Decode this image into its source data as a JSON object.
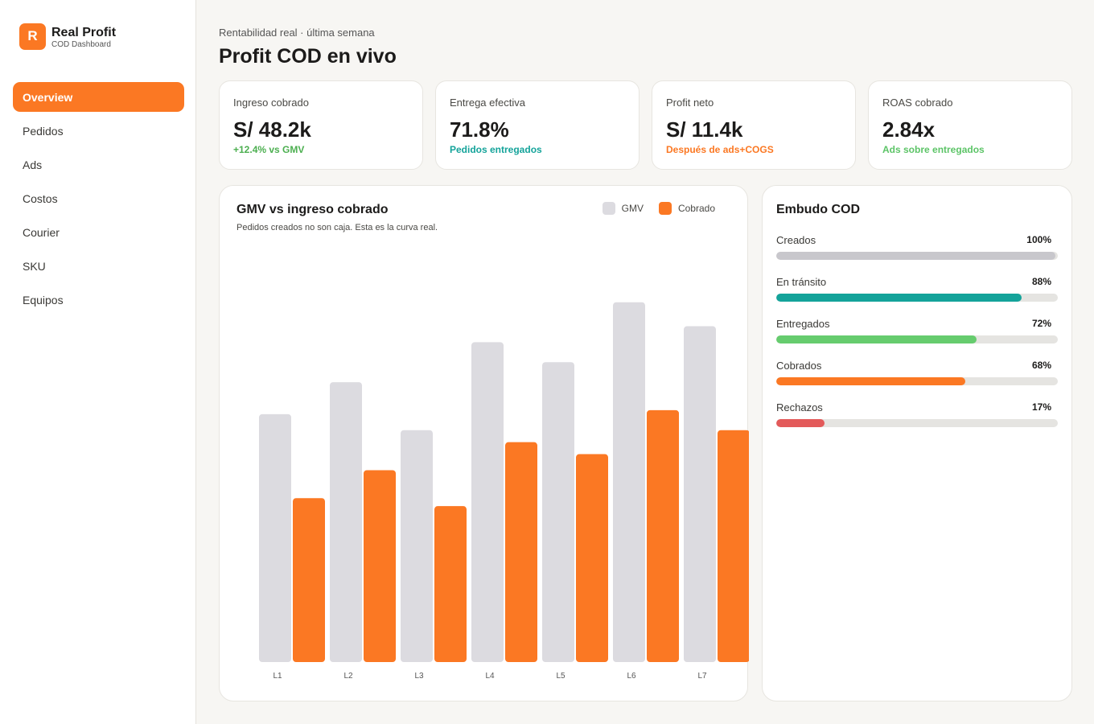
{
  "brand": {
    "logo_letter": "R",
    "name": "Real Profit",
    "subtitle": "COD Dashboard"
  },
  "nav": [
    {
      "label": "Overview",
      "active": true
    },
    {
      "label": "Pedidos"
    },
    {
      "label": "Ads"
    },
    {
      "label": "Costos"
    },
    {
      "label": "Courier"
    },
    {
      "label": "SKU"
    },
    {
      "label": "Equipos"
    }
  ],
  "header": {
    "eyebrow": "Rentabilidad real · última semana",
    "title": "Profit COD en vivo"
  },
  "kpis": [
    {
      "label": "Ingreso cobrado",
      "value": "S/ 48.2k",
      "delta": "+12.4% vs GMV",
      "color": "#4caf50"
    },
    {
      "label": "Entrega efectiva",
      "value": "71.8%",
      "delta": "Pedidos entregados",
      "color": "#14a39a"
    },
    {
      "label": "Profit neto",
      "value": "S/ 11.4k",
      "delta": "Después de ads+COGS",
      "color": "#fb7823"
    },
    {
      "label": "ROAS cobrado",
      "value": "2.84x",
      "delta": "Ads sobre entregados",
      "color": "#5cc467"
    }
  ],
  "chart": {
    "title": "GMV vs ingreso cobrado",
    "subtitle": "Pedidos creados no son caja. Esta es la curva real.",
    "legend": [
      {
        "label": "GMV",
        "color": "#dcdbe0"
      },
      {
        "label": "Cobrado",
        "color": "#fb7823"
      }
    ]
  },
  "chart_data": {
    "type": "bar",
    "categories": [
      "L1",
      "L2",
      "L3",
      "L4",
      "L5",
      "L6",
      "L7"
    ],
    "series": [
      {
        "name": "GMV",
        "values": [
          62,
          70,
          58,
          80,
          75,
          90,
          84
        ]
      },
      {
        "name": "Cobrado",
        "values": [
          41,
          48,
          39,
          55,
          52,
          63,
          58
        ]
      }
    ],
    "ylim": [
      0,
      100
    ],
    "grid": false,
    "legend_position": "top-right",
    "colors": [
      "#dcdbe0",
      "#fb7823"
    ]
  },
  "funnel": {
    "title": "Embudo COD",
    "stages": [
      {
        "label": "Creados",
        "value": "100%",
        "fraction": 0.99,
        "color": "#c8c7cc"
      },
      {
        "label": "En tránsito",
        "value": "88%",
        "fraction": 0.87,
        "color": "#14a39a"
      },
      {
        "label": "Entregados",
        "value": "72%",
        "fraction": 0.71,
        "color": "#66cc6e"
      },
      {
        "label": "Cobrados",
        "value": "68%",
        "fraction": 0.67,
        "color": "#fb7823"
      },
      {
        "label": "Rechazos",
        "value": "17%",
        "fraction": 0.17,
        "color": "#e35a5a"
      }
    ]
  }
}
